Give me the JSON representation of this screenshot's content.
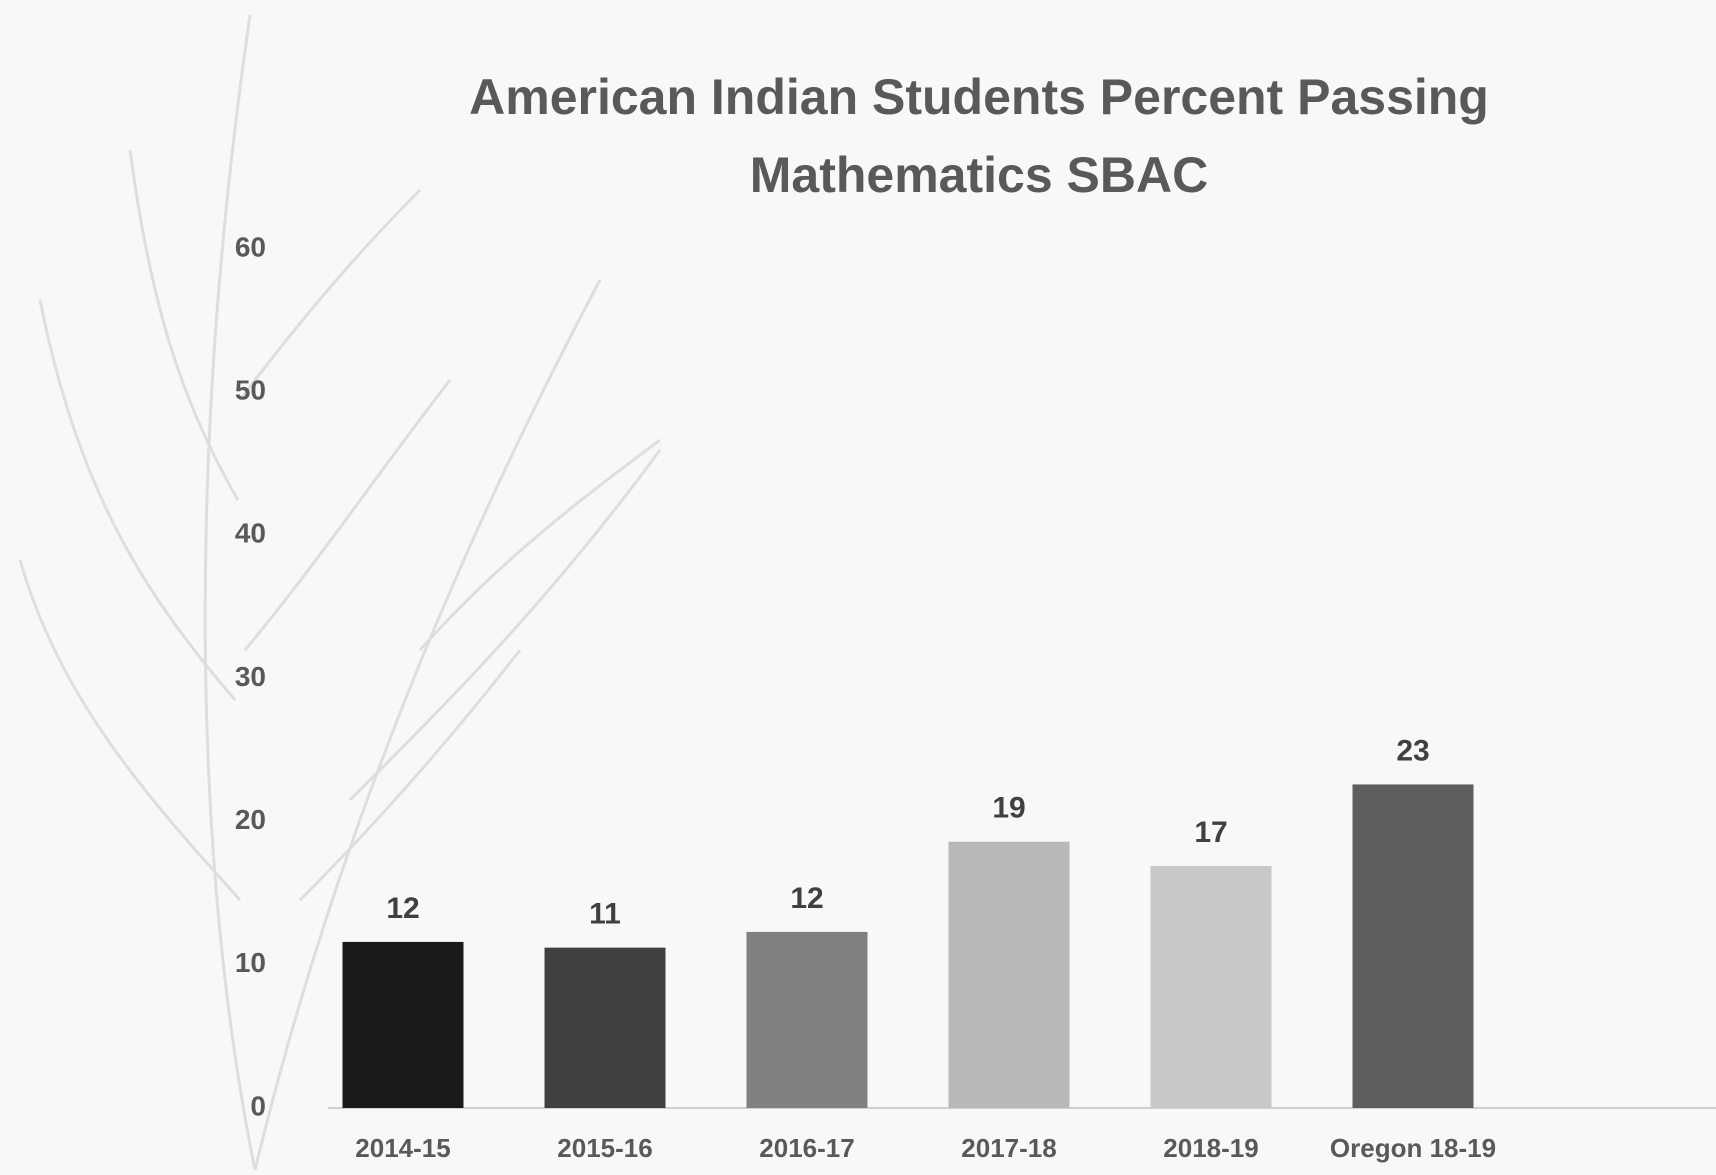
{
  "chart_data": {
    "type": "bar",
    "title": "American Indian Students Percent Passing Mathematics SBAC",
    "categories": [
      "2014-15",
      "2015-16",
      "2016-17",
      "2017-18",
      "2018-19",
      "Oregon 18-19"
    ],
    "values": [
      11.6,
      11.2,
      12.3,
      18.6,
      16.9,
      22.6
    ],
    "value_labels": [
      "12",
      "11",
      "12",
      "19",
      "17",
      "23"
    ],
    "colors": [
      "#1a1a1a",
      "#404040",
      "#808080",
      "#b8b8b8",
      "#c8c8c8",
      "#5e5e5e"
    ],
    "ylim": [
      0,
      60
    ],
    "yticks": [
      0,
      10,
      20,
      30,
      40,
      50,
      60
    ],
    "grid": false
  }
}
